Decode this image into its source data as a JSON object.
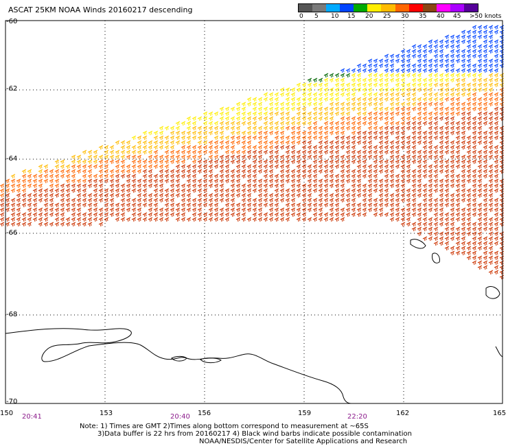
{
  "title": "ASCAT 25KM NOAA Winds 20160217 descending",
  "colorbar": {
    "colors": [
      "#555555",
      "#7a7a7a",
      "#00aaff",
      "#0044ff",
      "#00aa00",
      "#ffee00",
      "#ffbb00",
      "#ff6600",
      "#ff0000",
      "#8b4513",
      "#ff00ff",
      "#aa00ff",
      "#550099"
    ],
    "labels": [
      "0",
      "5",
      "10",
      "15",
      "20",
      "25",
      "30",
      "35",
      "40",
      "45",
      ">50 knots"
    ]
  },
  "lat_labels": [
    "-60",
    "-62",
    "-64",
    "-66",
    "-68",
    "-70"
  ],
  "lon_labels": [
    "150",
    "153",
    "156",
    "159",
    "162",
    "165"
  ],
  "time_labels": [
    "20:41",
    "20:40",
    "22:20"
  ],
  "notes": [
    "Note: 1) Times are GMT 2)Times along bottom correspond to measurement at ~65S",
    "3)Data buffer is 22 hrs from 20160217 4) Black wind barbs indicate possible contamination",
    "NOAA/NESDIS/Center for Satellite Applications and Research"
  ]
}
